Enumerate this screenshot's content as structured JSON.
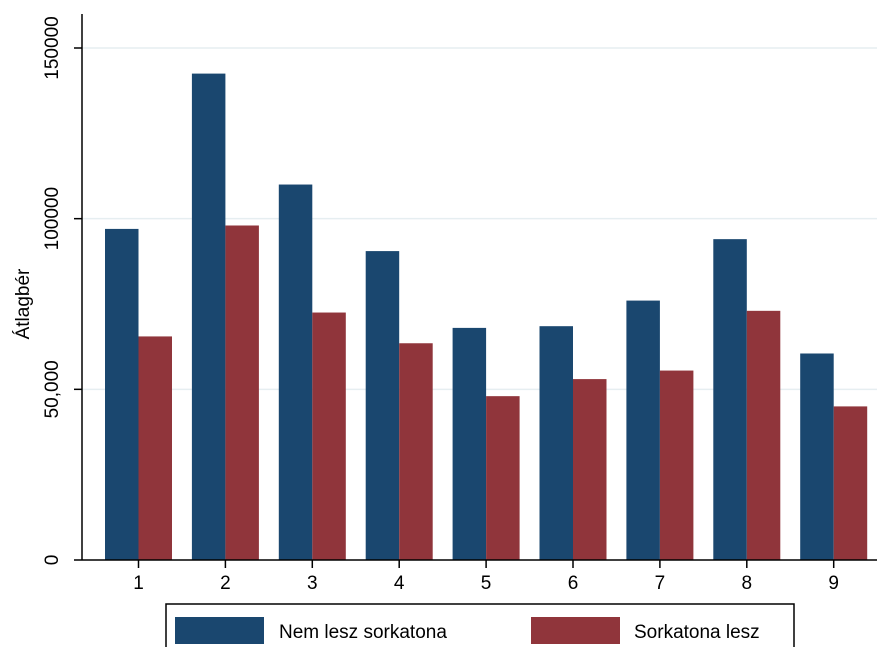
{
  "chart_data": {
    "type": "bar",
    "title": "",
    "xlabel": "",
    "ylabel": "Átlagbér",
    "categories": [
      "1",
      "2",
      "3",
      "4",
      "5",
      "6",
      "7",
      "8",
      "9"
    ],
    "series": [
      {
        "name": "Nem lesz sorkatona",
        "color": "#1a476f",
        "values": [
          97000,
          142500,
          110000,
          90500,
          68000,
          68500,
          76000,
          94000,
          60500
        ]
      },
      {
        "name": "Sorkatona lesz",
        "color": "#90353b",
        "values": [
          65500,
          98000,
          72500,
          63500,
          48000,
          53000,
          55500,
          73000,
          45000
        ]
      }
    ],
    "ylim": [
      0,
      150000
    ],
    "yticks": [
      {
        "value": 0,
        "label": "0"
      },
      {
        "value": 50000,
        "label": "50,000"
      },
      {
        "value": 100000,
        "label": "100000"
      },
      {
        "value": 150000,
        "label": "150000"
      }
    ],
    "grid": true,
    "legend_position": "bottom"
  }
}
